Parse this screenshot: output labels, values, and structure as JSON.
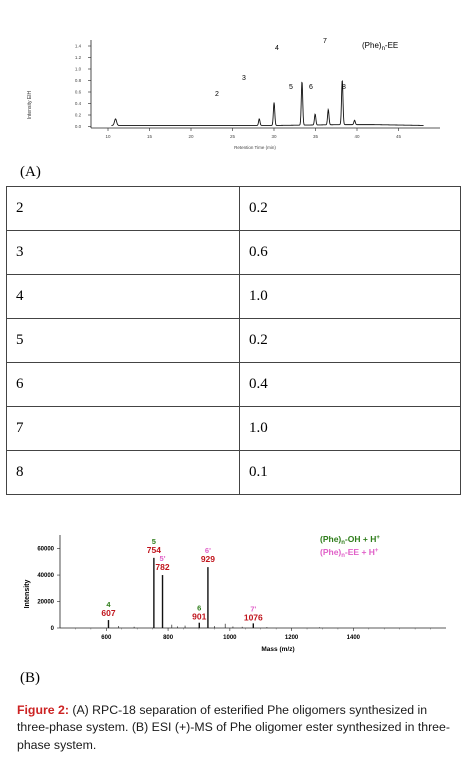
{
  "panel_a": {
    "label": "(A)",
    "legend": "(Phe)",
    "legend_sub": "n",
    "legend_suffix": "-EE",
    "ylabel": "Intensity EIH",
    "xlabel": "Retention Time (min)",
    "y_ticks": [
      "1.4",
      "1.2",
      "1.0",
      "0.8",
      "0.6",
      "0.4",
      "0.2",
      "0.0"
    ],
    "x_ticks": [
      "10",
      "15",
      "20",
      "25",
      "30",
      "35",
      "40",
      "45"
    ]
  },
  "table": {
    "rows": [
      {
        "peak": "2",
        "value": "0.2"
      },
      {
        "peak": "3",
        "value": "0.6"
      },
      {
        "peak": "4",
        "value": "1.0"
      },
      {
        "peak": "5",
        "value": "0.2"
      },
      {
        "peak": "6",
        "value": "0.4"
      },
      {
        "peak": "7",
        "value": "1.0"
      },
      {
        "peak": "8",
        "value": "0.1"
      }
    ]
  },
  "panel_b": {
    "label": "(B)",
    "legend_line1": "(Phe)n-OH + H+",
    "legend_line2": "(Phe)n-EE + H+",
    "ylabel": "Intensity",
    "xlabel": "Mass (m/z)",
    "colors": {
      "oh": "#2e7d1a",
      "ee": "#e060c8",
      "mz": "#c0141c"
    }
  },
  "chart_data": [
    {
      "type": "line",
      "title": "",
      "xlabel": "Retention Time (min)",
      "ylabel": "Intensity EIH",
      "xlim": [
        6,
        48
      ],
      "ylim": [
        0,
        1.5
      ],
      "peaks": [
        {
          "label": "2",
          "x": 26.0,
          "y": 0.12
        },
        {
          "label": "3",
          "x": 27.8,
          "y": 0.42
        },
        {
          "label": "4",
          "x": 31.2,
          "y": 0.8
        },
        {
          "label": "5",
          "x": 32.8,
          "y": 0.2
        },
        {
          "label": "6",
          "x": 34.4,
          "y": 0.28
        },
        {
          "label": "7",
          "x": 36.1,
          "y": 0.82
        },
        {
          "label": "8",
          "x": 37.6,
          "y": 0.08
        }
      ]
    },
    {
      "type": "bar",
      "title": "",
      "xlabel": "Mass (m/z)",
      "ylabel": "Intensity",
      "xlim": [
        450,
        1700
      ],
      "ylim": [
        0,
        68000
      ],
      "y_ticks": [
        "0",
        "20000",
        "40000",
        "60000"
      ],
      "x_ticks": [
        "600",
        "800",
        "1000",
        "1200",
        "1400"
      ],
      "peaks": [
        {
          "label": "4",
          "mz": "607",
          "x": 607,
          "y": 6000,
          "series": "oh"
        },
        {
          "label": "5",
          "mz": "754",
          "x": 754,
          "y": 53000,
          "series": "oh"
        },
        {
          "label": "5'",
          "mz": "782",
          "x": 782,
          "y": 40000,
          "series": "ee"
        },
        {
          "label": "6'",
          "mz": "929",
          "x": 929,
          "y": 46000,
          "series": "ee"
        },
        {
          "label": "6",
          "mz": "901",
          "x": 901,
          "y": 4000,
          "series": "oh"
        },
        {
          "label": "7'",
          "mz": "1076",
          "x": 1076,
          "y": 3500,
          "series": "ee"
        }
      ]
    }
  ],
  "caption": {
    "bold": "Figure 2:",
    "text": " (A) RPC-18 separation of esterified Phe oligomers synthesized in three-phase system. (B) ESI (+)-MS of Phe oligomer ester synthesized in three-phase system."
  }
}
